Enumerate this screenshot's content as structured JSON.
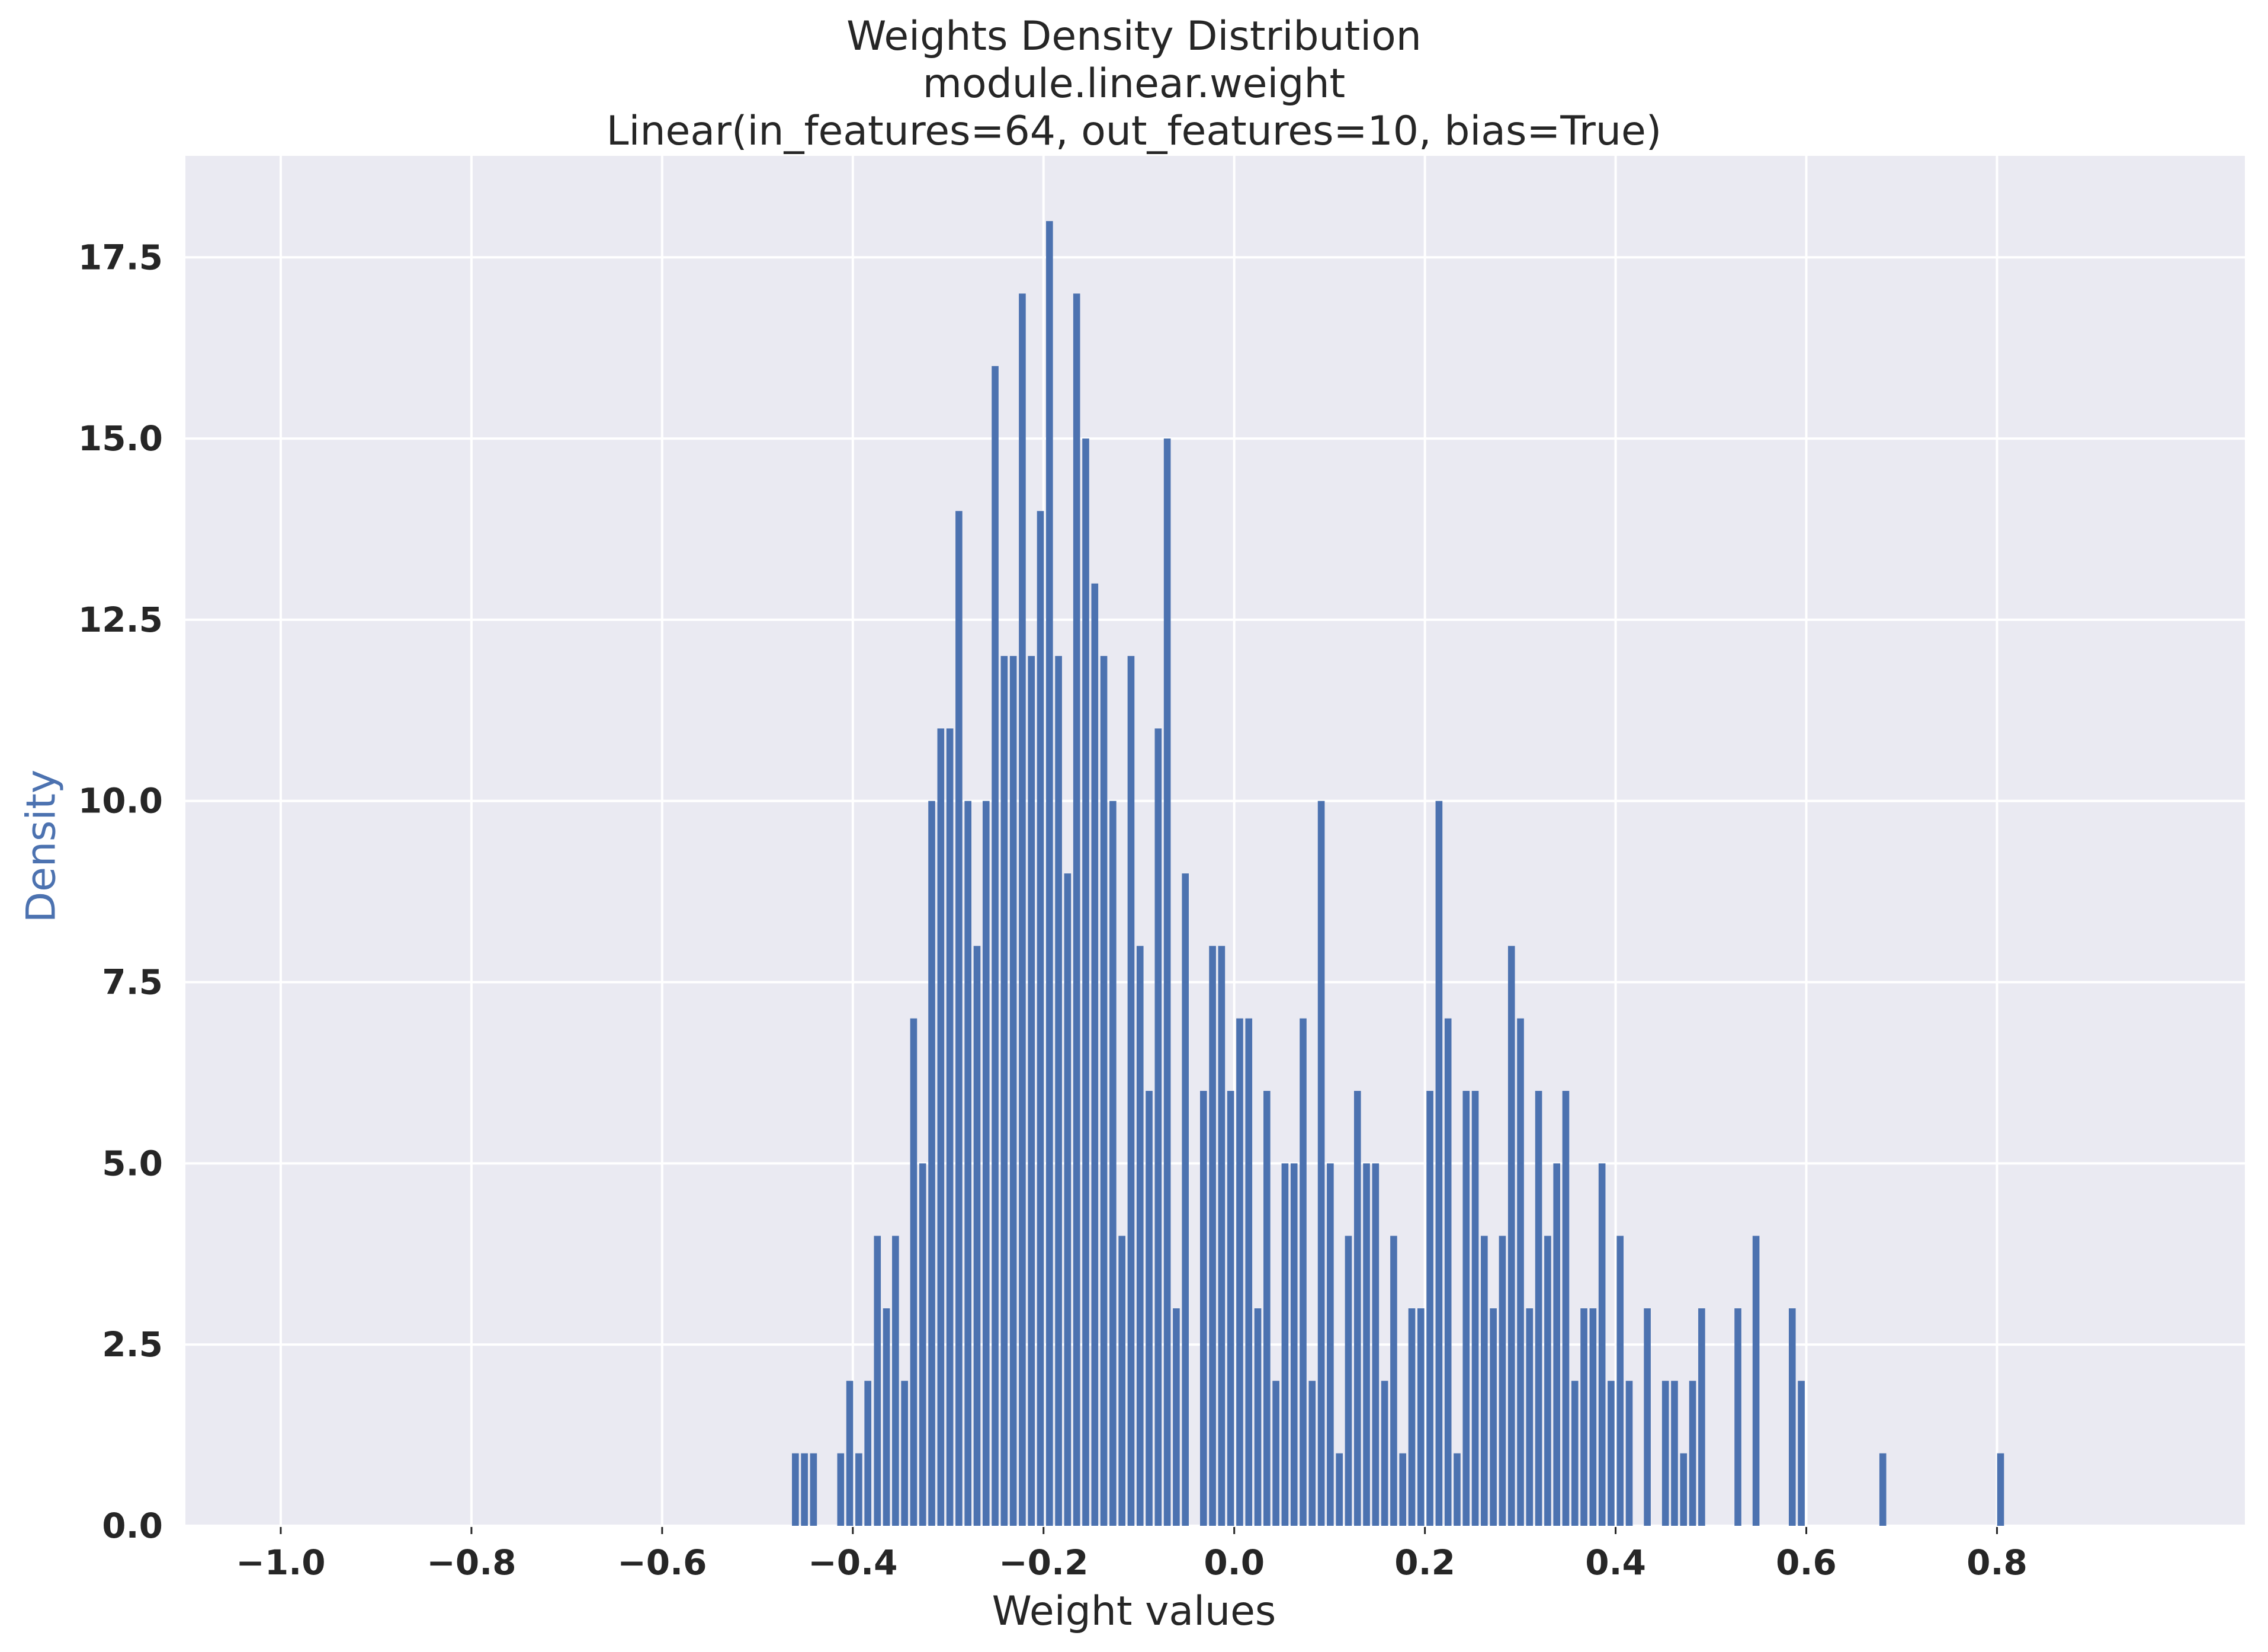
{
  "chart_data": {
    "type": "bar",
    "title_lines": [
      "Weights Density Distribution",
      "module.linear.weight",
      "Linear(in_features=64, out_features=10, bias=True)"
    ],
    "xlabel": "Weight values",
    "ylabel": "Density",
    "xlim": [
      -1.1,
      1.06
    ],
    "ylim": [
      0,
      18.9
    ],
    "xticks": [
      -1.0,
      -0.8,
      -0.6,
      -0.4,
      -0.2,
      0.0,
      0.2,
      0.4,
      0.6,
      0.8
    ],
    "xtick_labels": [
      "−1.0",
      "−0.8",
      "−0.6",
      "−0.4",
      "−0.2",
      "0.0",
      "0.2",
      "0.4",
      "0.6",
      "0.8"
    ],
    "yticks": [
      0.0,
      2.5,
      5.0,
      7.5,
      10.0,
      12.5,
      15.0,
      17.5
    ],
    "ytick_labels": [
      "0.0",
      "2.5",
      "5.0",
      "7.5",
      "10.0",
      "12.5",
      "15.0",
      "17.5"
    ],
    "grid": true,
    "colors": {
      "bar": "#4C72B0",
      "axes_bg": "#EAEAF2",
      "grid": "#FFFFFF",
      "text": "#262626",
      "ylabel": "#4C72B0"
    },
    "bin_width": 0.0097,
    "bins": [
      {
        "x": -0.459,
        "value": 1
      },
      {
        "x": -0.4495,
        "value": 1
      },
      {
        "x": -0.44,
        "value": 1
      },
      {
        "x": -0.4115,
        "value": 1
      },
      {
        "x": -0.402,
        "value": 2
      },
      {
        "x": -0.3925,
        "value": 1
      },
      {
        "x": -0.383,
        "value": 2
      },
      {
        "x": -0.373,
        "value": 4
      },
      {
        "x": -0.3635,
        "value": 3
      },
      {
        "x": -0.354,
        "value": 4
      },
      {
        "x": -0.3445,
        "value": 2
      },
      {
        "x": -0.335,
        "value": 7
      },
      {
        "x": -0.3255,
        "value": 5
      },
      {
        "x": -0.316,
        "value": 10
      },
      {
        "x": -0.3065,
        "value": 11
      },
      {
        "x": -0.297,
        "value": 11
      },
      {
        "x": -0.2875,
        "value": 14
      },
      {
        "x": -0.278,
        "value": 10
      },
      {
        "x": -0.2685,
        "value": 8
      },
      {
        "x": -0.259,
        "value": 10
      },
      {
        "x": -0.2495,
        "value": 16
      },
      {
        "x": -0.24,
        "value": 12
      },
      {
        "x": -0.2305,
        "value": 12
      },
      {
        "x": -0.221,
        "value": 17
      },
      {
        "x": -0.2115,
        "value": 12
      },
      {
        "x": -0.202,
        "value": 14
      },
      {
        "x": -0.1925,
        "value": 18
      },
      {
        "x": -0.183,
        "value": 12
      },
      {
        "x": -0.1735,
        "value": 9
      },
      {
        "x": -0.164,
        "value": 17
      },
      {
        "x": -0.1545,
        "value": 15
      },
      {
        "x": -0.145,
        "value": 13
      },
      {
        "x": -0.1355,
        "value": 12
      },
      {
        "x": -0.126,
        "value": 10
      },
      {
        "x": -0.1165,
        "value": 4
      },
      {
        "x": -0.107,
        "value": 12
      },
      {
        "x": -0.0975,
        "value": 8
      },
      {
        "x": -0.088,
        "value": 6
      },
      {
        "x": -0.0785,
        "value": 11
      },
      {
        "x": -0.069,
        "value": 15
      },
      {
        "x": -0.0595,
        "value": 3
      },
      {
        "x": -0.05,
        "value": 9
      },
      {
        "x": -0.031,
        "value": 6
      },
      {
        "x": -0.0215,
        "value": 8
      },
      {
        "x": -0.012,
        "value": 8
      },
      {
        "x": -0.0025,
        "value": 6
      },
      {
        "x": 0.007,
        "value": 7
      },
      {
        "x": 0.0165,
        "value": 7
      },
      {
        "x": 0.026,
        "value": 3
      },
      {
        "x": 0.0355,
        "value": 6
      },
      {
        "x": 0.045,
        "value": 2
      },
      {
        "x": 0.0545,
        "value": 5
      },
      {
        "x": 0.064,
        "value": 5
      },
      {
        "x": 0.0735,
        "value": 7
      },
      {
        "x": 0.083,
        "value": 2
      },
      {
        "x": 0.0925,
        "value": 10
      },
      {
        "x": 0.102,
        "value": 5
      },
      {
        "x": 0.1115,
        "value": 1
      },
      {
        "x": 0.121,
        "value": 4
      },
      {
        "x": 0.1305,
        "value": 6
      },
      {
        "x": 0.14,
        "value": 5
      },
      {
        "x": 0.1495,
        "value": 5
      },
      {
        "x": 0.159,
        "value": 2
      },
      {
        "x": 0.1685,
        "value": 4
      },
      {
        "x": 0.178,
        "value": 1
      },
      {
        "x": 0.1875,
        "value": 3
      },
      {
        "x": 0.197,
        "value": 3
      },
      {
        "x": 0.2065,
        "value": 6
      },
      {
        "x": 0.216,
        "value": 10
      },
      {
        "x": 0.2255,
        "value": 7
      },
      {
        "x": 0.235,
        "value": 1
      },
      {
        "x": 0.2445,
        "value": 6
      },
      {
        "x": 0.254,
        "value": 6
      },
      {
        "x": 0.2635,
        "value": 4
      },
      {
        "x": 0.273,
        "value": 3
      },
      {
        "x": 0.2825,
        "value": 4
      },
      {
        "x": 0.292,
        "value": 8
      },
      {
        "x": 0.3015,
        "value": 7
      },
      {
        "x": 0.311,
        "value": 3
      },
      {
        "x": 0.3205,
        "value": 6
      },
      {
        "x": 0.33,
        "value": 4
      },
      {
        "x": 0.3395,
        "value": 5
      },
      {
        "x": 0.349,
        "value": 6
      },
      {
        "x": 0.3585,
        "value": 2
      },
      {
        "x": 0.368,
        "value": 3
      },
      {
        "x": 0.3775,
        "value": 3
      },
      {
        "x": 0.387,
        "value": 5
      },
      {
        "x": 0.3965,
        "value": 2
      },
      {
        "x": 0.406,
        "value": 4
      },
      {
        "x": 0.4155,
        "value": 2
      },
      {
        "x": 0.4345,
        "value": 3
      },
      {
        "x": 0.4535,
        "value": 2
      },
      {
        "x": 0.463,
        "value": 2
      },
      {
        "x": 0.4725,
        "value": 1
      },
      {
        "x": 0.482,
        "value": 2
      },
      {
        "x": 0.4915,
        "value": 3
      },
      {
        "x": 0.5295,
        "value": 3
      },
      {
        "x": 0.5485,
        "value": 4
      },
      {
        "x": 0.5865,
        "value": 3
      },
      {
        "x": 0.596,
        "value": 2
      },
      {
        "x": 0.6815,
        "value": 1
      },
      {
        "x": 0.805,
        "value": 1
      }
    ]
  }
}
